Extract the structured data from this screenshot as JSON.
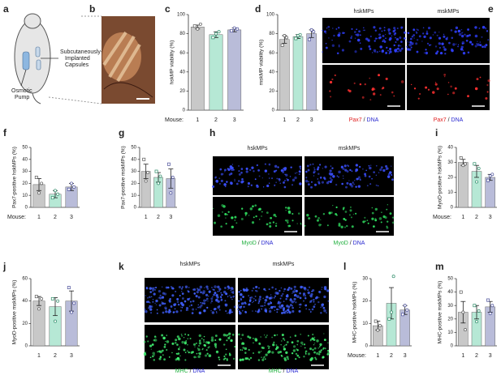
{
  "panel_letters": [
    "a",
    "b",
    "c",
    "d",
    "e",
    "f",
    "g",
    "h",
    "i",
    "j",
    "k",
    "l",
    "m"
  ],
  "schematic": {
    "capsule_label": [
      "Subcutaneously-",
      "Implanted",
      "Capsules"
    ],
    "pump_label": [
      "Osmotic",
      "Pump"
    ]
  },
  "image_panels": {
    "e": {
      "columns": [
        "hskMPs",
        "mskMPs"
      ],
      "caption": [
        "Pax7",
        "/",
        "DNA"
      ]
    },
    "h": {
      "columns": [
        "hskMPs",
        "mskMPs"
      ],
      "caption": [
        "MyoD",
        "/",
        "DNA"
      ]
    },
    "k": {
      "columns": [
        "hskMPs",
        "mskMPs"
      ],
      "caption": [
        "MHC",
        "/",
        "DNA"
      ]
    }
  },
  "chart_data": [
    {
      "type": "bar",
      "ylabel": "hskMP viability (%)",
      "x_label": "Mouse:",
      "categories": [
        "1",
        "2",
        "3"
      ],
      "values": [
        87,
        79,
        84
      ],
      "errors": [
        2,
        3,
        2
      ],
      "points": [
        [
          88,
          85,
          90
        ],
        [
          76,
          80,
          82
        ],
        [
          83,
          86,
          85
        ]
      ],
      "colors": [
        "#c8c8c8",
        "#b6e8d5",
        "#b9bcd9"
      ],
      "ylim": [
        0,
        100
      ],
      "yticks": [
        0,
        20,
        40,
        60,
        80,
        100
      ]
    },
    {
      "type": "bar",
      "ylabel": "mskMP viability (%)",
      "categories": [
        "1",
        "2",
        "3"
      ],
      "values": [
        74,
        77,
        80
      ],
      "errors": [
        4,
        2,
        4
      ],
      "points": [
        [
          68,
          78,
          76
        ],
        [
          75,
          78,
          79
        ],
        [
          74,
          84,
          82
        ]
      ],
      "colors": [
        "#c8c8c8",
        "#b6e8d5",
        "#b9bcd9"
      ],
      "ylim": [
        0,
        100
      ],
      "yticks": [
        0,
        20,
        40,
        60,
        80,
        100
      ]
    },
    {
      "type": "bar",
      "ylabel": "Pax7-positive hskMPs (%)",
      "x_label": "Mouse:",
      "categories": [
        "1",
        "2",
        "3"
      ],
      "values": [
        19,
        11,
        17
      ],
      "errors": [
        5,
        3,
        3
      ],
      "points": [
        [
          25,
          12,
          20
        ],
        [
          8,
          14,
          11
        ],
        [
          15,
          20,
          17
        ]
      ],
      "colors": [
        "#c8c8c8",
        "#b6e8d5",
        "#b9bcd9"
      ],
      "ylim": [
        0,
        50
      ],
      "yticks": [
        0,
        10,
        20,
        30,
        40,
        50
      ]
    },
    {
      "type": "bar",
      "ylabel": "Pax7-positive mskMPs (%)",
      "categories": [
        "1",
        "2",
        "3"
      ],
      "values": [
        30,
        25,
        24
      ],
      "errors": [
        6,
        4,
        8
      ],
      "points": [
        [
          40,
          22,
          29
        ],
        [
          30,
          20,
          26
        ],
        [
          36,
          12,
          25
        ]
      ],
      "colors": [
        "#c8c8c8",
        "#b6e8d5",
        "#b9bcd9"
      ],
      "ylim": [
        0,
        50
      ],
      "yticks": [
        0,
        10,
        20,
        30,
        40,
        50
      ]
    },
    {
      "type": "bar",
      "ylabel": "MyoD-positive hskMPs (%)",
      "x_label": "Mouse:",
      "categories": [
        "1",
        "2",
        "3"
      ],
      "values": [
        30,
        24,
        20
      ],
      "errors": [
        2,
        4,
        2
      ],
      "points": [
        [
          33,
          28,
          29
        ],
        [
          29,
          17,
          26
        ],
        [
          18,
          21,
          22
        ]
      ],
      "colors": [
        "#c8c8c8",
        "#b6e8d5",
        "#b9bcd9"
      ],
      "ylim": [
        0,
        40
      ],
      "yticks": [
        0,
        10,
        20,
        30,
        40
      ]
    },
    {
      "type": "bar",
      "ylabel": "MyoD-positive mskMPs (%)",
      "categories": [
        "1",
        "2",
        "3"
      ],
      "values": [
        40,
        35,
        40
      ],
      "errors": [
        4,
        8,
        9
      ],
      "points": [
        [
          44,
          33,
          42
        ],
        [
          42,
          22,
          40
        ],
        [
          52,
          30,
          38
        ]
      ],
      "colors": [
        "#c8c8c8",
        "#b6e8d5",
        "#b9bcd9"
      ],
      "ylim": [
        0,
        60
      ],
      "yticks": [
        0,
        20,
        40,
        60
      ]
    },
    {
      "type": "bar",
      "ylabel": "MHC-positive hskMPs (%)",
      "x_label": "Mouse:",
      "categories": [
        "1",
        "2",
        "3"
      ],
      "values": [
        9,
        19,
        16
      ],
      "errors": [
        2,
        7,
        2
      ],
      "points": [
        [
          11,
          7,
          9
        ],
        [
          12,
          15,
          31
        ],
        [
          14,
          18,
          16
        ]
      ],
      "colors": [
        "#c8c8c8",
        "#b6e8d5",
        "#b9bcd9"
      ],
      "ylim": [
        0,
        30
      ],
      "yticks": [
        0,
        10,
        20,
        30
      ]
    },
    {
      "type": "bar",
      "ylabel": "MHC-positive mskMPs (%)",
      "categories": [
        "1",
        "2",
        "3"
      ],
      "values": [
        25,
        25,
        29
      ],
      "errors": [
        8,
        5,
        4
      ],
      "points": [
        [
          40,
          25,
          12
        ],
        [
          30,
          18,
          26
        ],
        [
          34,
          24,
          30
        ]
      ],
      "colors": [
        "#c8c8c8",
        "#b6e8d5",
        "#b9bcd9"
      ],
      "ylim": [
        0,
        50
      ],
      "yticks": [
        0,
        10,
        20,
        30,
        40,
        50
      ]
    }
  ]
}
